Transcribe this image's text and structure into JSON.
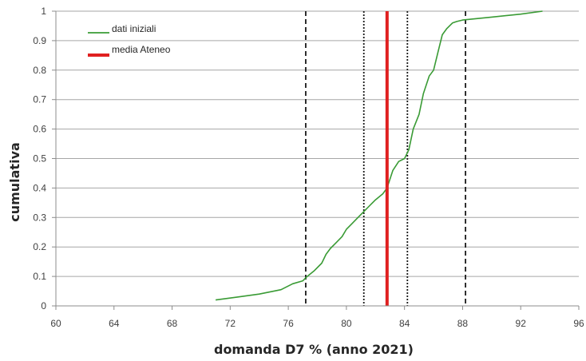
{
  "chart_data": {
    "type": "line",
    "title": "",
    "xlabel": "domanda D7 % (anno 2021)",
    "ylabel": "cumulativa",
    "xlim": [
      60,
      96
    ],
    "ylim": [
      0,
      1
    ],
    "x_ticks": [
      60,
      64,
      68,
      72,
      76,
      80,
      84,
      88,
      92,
      96
    ],
    "y_ticks": [
      0,
      0.1,
      0.2,
      0.3,
      0.4,
      0.5,
      0.6,
      0.7,
      0.8,
      0.9,
      1
    ],
    "x_tick_labels": [
      "60",
      "64",
      "68",
      "72",
      "76",
      "80",
      "84",
      "88",
      "92",
      "96"
    ],
    "y_tick_labels": [
      "0",
      "0.1",
      "0.2",
      "0.3",
      "0.4",
      "0.5",
      "0.6",
      "0.7",
      "0.8",
      "0.9",
      "1"
    ],
    "grid": "horizontal",
    "legend_position": "top-left",
    "series": [
      {
        "name": "dati iniziali",
        "color": "#3a9b35",
        "x": [
          71.0,
          72.5,
          74.0,
          75.5,
          76.3,
          77.0,
          77.3,
          77.8,
          78.3,
          78.6,
          78.9,
          79.3,
          79.7,
          80.0,
          80.4,
          80.8,
          81.2,
          81.6,
          82.0,
          82.5,
          82.8,
          83.2,
          83.6,
          84.0,
          84.3,
          84.6,
          85.0,
          85.3,
          85.7,
          86.0,
          86.3,
          86.6,
          86.9,
          87.3,
          87.6,
          88.0,
          90.0,
          92.0,
          93.5
        ],
        "y": [
          0.02,
          0.03,
          0.04,
          0.055,
          0.075,
          0.085,
          0.1,
          0.12,
          0.145,
          0.175,
          0.195,
          0.215,
          0.235,
          0.26,
          0.28,
          0.3,
          0.32,
          0.34,
          0.36,
          0.38,
          0.4,
          0.46,
          0.49,
          0.5,
          0.53,
          0.6,
          0.65,
          0.72,
          0.78,
          0.8,
          0.86,
          0.92,
          0.94,
          0.96,
          0.965,
          0.97,
          0.98,
          0.99,
          1.0
        ]
      },
      {
        "name": "media Ateneo",
        "color": "#e02020",
        "x": [
          82.8,
          82.8
        ],
        "y": [
          0,
          1
        ]
      }
    ],
    "reference_lines": [
      {
        "x": 77.2,
        "style": "dashed",
        "color": "#1a1a1a"
      },
      {
        "x": 81.2,
        "style": "dotted",
        "color": "#1a1a1a"
      },
      {
        "x": 84.2,
        "style": "dotted",
        "color": "#1a1a1a"
      },
      {
        "x": 88.2,
        "style": "dashed",
        "color": "#1a1a1a"
      }
    ]
  }
}
